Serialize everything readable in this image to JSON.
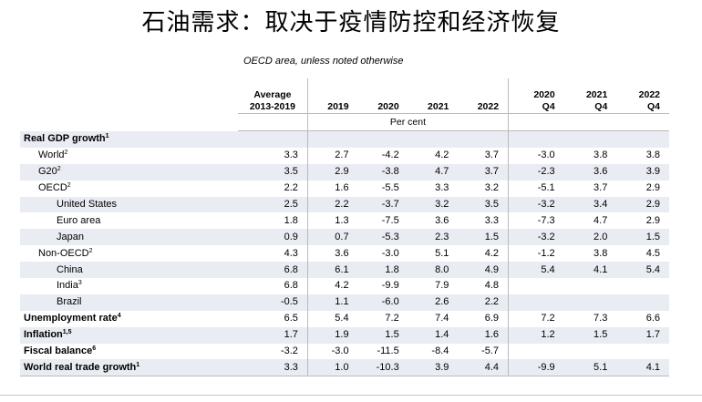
{
  "title": "石油需求：取决于疫情防控和经济恢复",
  "subtitle": "OECD area, unless noted otherwise",
  "header": {
    "c0_line1": "Average",
    "c0_line2": "2013-2019",
    "c1": "2019",
    "c2": "2020",
    "c3": "2021",
    "c4": "2022",
    "c5_line1": "2020",
    "c5_line2": "Q4",
    "c6_line1": "2021",
    "c6_line2": "Q4",
    "c7_line1": "2022",
    "c7_line2": "Q4"
  },
  "unit": "Per cent",
  "rows": [
    {
      "label": "Real GDP growth",
      "sup": "1",
      "style": "bold",
      "shade": true,
      "v": [
        "",
        "",
        "",
        "",
        "",
        "",
        "",
        ""
      ]
    },
    {
      "label": "World",
      "sup": "2",
      "style": "l2",
      "shade": false,
      "v": [
        "3.3",
        "2.7",
        "-4.2",
        "4.2",
        "3.7",
        "-3.0",
        "3.8",
        "3.8"
      ]
    },
    {
      "label": "G20",
      "sup": "2",
      "style": "l2",
      "shade": true,
      "v": [
        "3.5",
        "2.9",
        "-3.8",
        "4.7",
        "3.7",
        "-2.3",
        "3.6",
        "3.9"
      ]
    },
    {
      "label": "OECD",
      "sup": "2",
      "style": "l2",
      "shade": false,
      "v": [
        "2.2",
        "1.6",
        "-5.5",
        "3.3",
        "3.2",
        "-5.1",
        "3.7",
        "2.9"
      ]
    },
    {
      "label": "United States",
      "sup": "",
      "style": "l3",
      "shade": true,
      "v": [
        "2.5",
        "2.2",
        "-3.7",
        "3.2",
        "3.5",
        "-3.2",
        "3.4",
        "2.9"
      ]
    },
    {
      "label": "Euro area",
      "sup": "",
      "style": "l3",
      "shade": false,
      "v": [
        "1.8",
        "1.3",
        "-7.5",
        "3.6",
        "3.3",
        "-7.3",
        "4.7",
        "2.9"
      ]
    },
    {
      "label": "Japan",
      "sup": "",
      "style": "l3",
      "shade": true,
      "v": [
        "0.9",
        "0.7",
        "-5.3",
        "2.3",
        "1.5",
        "-3.2",
        "2.0",
        "1.5"
      ]
    },
    {
      "label": "Non-OECD",
      "sup": "2",
      "style": "l2",
      "shade": false,
      "v": [
        "4.3",
        "3.6",
        "-3.0",
        "5.1",
        "4.2",
        "-1.2",
        "3.8",
        "4.5"
      ]
    },
    {
      "label": "China",
      "sup": "",
      "style": "l3",
      "shade": true,
      "v": [
        "6.8",
        "6.1",
        "1.8",
        "8.0",
        "4.9",
        "5.4",
        "4.1",
        "5.4"
      ]
    },
    {
      "label": "India",
      "sup": "3",
      "style": "l3",
      "shade": false,
      "v": [
        "6.8",
        "4.2",
        "-9.9",
        "7.9",
        "4.8",
        "",
        "",
        ""
      ]
    },
    {
      "label": "Brazil",
      "sup": "",
      "style": "l3",
      "shade": true,
      "v": [
        "-0.5",
        "1.1",
        "-6.0",
        "2.6",
        "2.2",
        "",
        "",
        ""
      ]
    },
    {
      "label": "Unemployment rate",
      "sup": "4",
      "style": "bold",
      "shade": false,
      "v": [
        "6.5",
        "5.4",
        "7.2",
        "7.4",
        "6.9",
        "7.2",
        "7.3",
        "6.6"
      ]
    },
    {
      "label": "Inflation",
      "sup": "1,5",
      "style": "bold",
      "shade": true,
      "v": [
        "1.7",
        "1.9",
        "1.5",
        "1.4",
        "1.6",
        "1.2",
        "1.5",
        "1.7"
      ]
    },
    {
      "label": "Fiscal balance",
      "sup": "6",
      "style": "bold",
      "shade": false,
      "v": [
        "-3.2",
        "-3.0",
        "-11.5",
        "-8.4",
        "-5.7",
        "",
        "",
        ""
      ]
    },
    {
      "label": "World real trade growth",
      "sup": "1",
      "style": "bold",
      "shade": true,
      "v": [
        "3.3",
        "1.0",
        "-10.3",
        "3.9",
        "4.4",
        "-9.9",
        "5.1",
        "4.1"
      ]
    }
  ]
}
